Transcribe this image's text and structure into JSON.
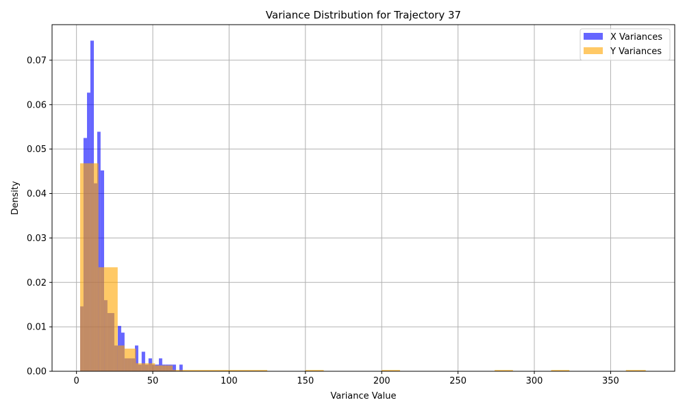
{
  "chart_data": {
    "type": "histogram",
    "title": "Variance Distribution for Trajectory 37",
    "xlabel": "Variance Value",
    "ylabel": "Density",
    "xlim": [
      -16,
      392
    ],
    "ylim": [
      0,
      0.078
    ],
    "xticks": [
      0,
      50,
      100,
      150,
      200,
      250,
      300,
      350
    ],
    "yticks": [
      0.0,
      0.01,
      0.02,
      0.03,
      0.04,
      0.05,
      0.06,
      0.07
    ],
    "ytick_labels": [
      "0.00",
      "0.01",
      "0.02",
      "0.03",
      "0.04",
      "0.05",
      "0.06",
      "0.07"
    ],
    "grid": true,
    "legend_position": "top-right",
    "series": [
      {
        "name": "X Variances",
        "color": "#0000ff",
        "alpha": 0.6,
        "bins": [
          {
            "x0": 2.4,
            "x1": 4.6,
            "density": 0.0146
          },
          {
            "x0": 4.6,
            "x1": 6.9,
            "density": 0.0525
          },
          {
            "x0": 6.9,
            "x1": 9.1,
            "density": 0.0627
          },
          {
            "x0": 9.1,
            "x1": 11.4,
            "density": 0.0744
          },
          {
            "x0": 11.4,
            "x1": 13.6,
            "density": 0.0423
          },
          {
            "x0": 13.6,
            "x1": 15.8,
            "density": 0.0539
          },
          {
            "x0": 15.8,
            "x1": 18.1,
            "density": 0.0452
          },
          {
            "x0": 18.1,
            "x1": 20.3,
            "density": 0.016
          },
          {
            "x0": 20.3,
            "x1": 22.6,
            "density": 0.0131
          },
          {
            "x0": 22.6,
            "x1": 24.8,
            "density": 0.0131
          },
          {
            "x0": 24.8,
            "x1": 27.1,
            "density": 0.0058
          },
          {
            "x0": 27.1,
            "x1": 29.3,
            "density": 0.0102
          },
          {
            "x0": 29.3,
            "x1": 31.5,
            "density": 0.0087
          },
          {
            "x0": 31.5,
            "x1": 33.8,
            "density": 0.0029
          },
          {
            "x0": 33.8,
            "x1": 36.0,
            "density": 0.0029
          },
          {
            "x0": 36.0,
            "x1": 38.3,
            "density": 0.0029
          },
          {
            "x0": 38.3,
            "x1": 40.5,
            "density": 0.0058
          },
          {
            "x0": 40.5,
            "x1": 42.7,
            "density": 0.0015
          },
          {
            "x0": 42.7,
            "x1": 45.0,
            "density": 0.0044
          },
          {
            "x0": 45.0,
            "x1": 47.2,
            "density": 0.0015
          },
          {
            "x0": 47.2,
            "x1": 49.5,
            "density": 0.0029
          },
          {
            "x0": 49.5,
            "x1": 51.7,
            "density": 0.0015
          },
          {
            "x0": 51.7,
            "x1": 54.0,
            "density": 0.0015
          },
          {
            "x0": 54.0,
            "x1": 56.2,
            "density": 0.0029
          },
          {
            "x0": 56.2,
            "x1": 58.4,
            "density": 0.0015
          },
          {
            "x0": 58.4,
            "x1": 60.7,
            "density": 0.0015
          },
          {
            "x0": 60.7,
            "x1": 62.9,
            "density": 0.0015
          },
          {
            "x0": 62.9,
            "x1": 65.2,
            "density": 0.0015
          },
          {
            "x0": 67.4,
            "x1": 69.6,
            "density": 0.0015
          }
        ]
      },
      {
        "name": "Y Variances",
        "color": "#ffa500",
        "alpha": 0.6,
        "bins": [
          {
            "x0": 2.4,
            "x1": 9.4,
            "density": 0.0468
          },
          {
            "x0": 9.4,
            "x1": 14.4,
            "density": 0.0468
          },
          {
            "x0": 14.4,
            "x1": 18.4,
            "density": 0.0234
          },
          {
            "x0": 18.4,
            "x1": 27.0,
            "density": 0.0234
          },
          {
            "x0": 27.0,
            "x1": 31.5,
            "density": 0.0058
          },
          {
            "x0": 31.5,
            "x1": 39.0,
            "density": 0.0051
          },
          {
            "x0": 39.0,
            "x1": 45.0,
            "density": 0.0018
          },
          {
            "x0": 45.0,
            "x1": 51.5,
            "density": 0.0018
          },
          {
            "x0": 51.5,
            "x1": 63.0,
            "density": 0.0013
          },
          {
            "x0": 63.0,
            "x1": 125.0,
            "density": 0.0003
          },
          {
            "x0": 150.0,
            "x1": 162.0,
            "density": 0.0003
          },
          {
            "x0": 200.0,
            "x1": 212.0,
            "density": 0.0003
          },
          {
            "x0": 274.0,
            "x1": 286.0,
            "density": 0.0003
          },
          {
            "x0": 311.0,
            "x1": 323.0,
            "density": 0.0003
          },
          {
            "x0": 360.0,
            "x1": 373.0,
            "density": 0.0003
          }
        ]
      }
    ]
  }
}
